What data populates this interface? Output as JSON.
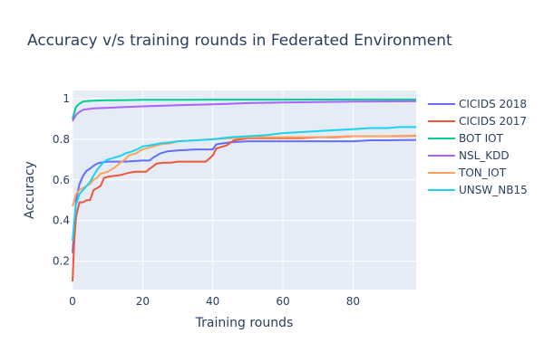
{
  "chart_data": {
    "type": "line",
    "title": "Accuracy v/s training rounds in Federated Environment",
    "xlabel": "Training rounds",
    "ylabel": "Accuracy",
    "xlim": [
      0,
      98
    ],
    "ylim": [
      0.06,
      1.04
    ],
    "x_ticks": [
      0,
      20,
      40,
      60,
      80
    ],
    "x_tick_labels": [
      "0",
      "20",
      "40",
      "60",
      "80"
    ],
    "y_ticks": [
      0.2,
      0.4,
      0.6,
      0.8,
      1.0
    ],
    "y_tick_labels": [
      "0.2",
      "0.4",
      "0.6",
      "0.8",
      "1"
    ],
    "grid": true,
    "legend_position": "right",
    "plot_background": "#e5ecf6",
    "series": [
      {
        "name": "CICIDS 2018",
        "color": "#636efa",
        "points": [
          [
            0,
            0.24
          ],
          [
            1,
            0.5
          ],
          [
            2,
            0.58
          ],
          [
            3,
            0.62
          ],
          [
            4,
            0.645
          ],
          [
            5,
            0.655
          ],
          [
            6,
            0.67
          ],
          [
            7,
            0.68
          ],
          [
            8,
            0.685
          ],
          [
            10,
            0.69
          ],
          [
            15,
            0.69
          ],
          [
            20,
            0.695
          ],
          [
            22,
            0.695
          ],
          [
            23,
            0.71
          ],
          [
            25,
            0.73
          ],
          [
            27,
            0.74
          ],
          [
            30,
            0.745
          ],
          [
            35,
            0.75
          ],
          [
            40,
            0.75
          ],
          [
            41,
            0.775
          ],
          [
            45,
            0.785
          ],
          [
            50,
            0.79
          ],
          [
            55,
            0.79
          ],
          [
            60,
            0.79
          ],
          [
            70,
            0.79
          ],
          [
            80,
            0.79
          ],
          [
            85,
            0.795
          ],
          [
            90,
            0.795
          ],
          [
            98,
            0.797
          ]
        ]
      },
      {
        "name": "CICIDS 2017",
        "color": "#ef553b",
        "points": [
          [
            0,
            0.1
          ],
          [
            0.5,
            0.3
          ],
          [
            1,
            0.42
          ],
          [
            2,
            0.49
          ],
          [
            3,
            0.49
          ],
          [
            4,
            0.5
          ],
          [
            5,
            0.5
          ],
          [
            6,
            0.55
          ],
          [
            7,
            0.56
          ],
          [
            8,
            0.57
          ],
          [
            9,
            0.61
          ],
          [
            10,
            0.615
          ],
          [
            12,
            0.62
          ],
          [
            14,
            0.625
          ],
          [
            16,
            0.635
          ],
          [
            18,
            0.64
          ],
          [
            20,
            0.64
          ],
          [
            21,
            0.64
          ],
          [
            22,
            0.655
          ],
          [
            24,
            0.68
          ],
          [
            26,
            0.685
          ],
          [
            28,
            0.685
          ],
          [
            30,
            0.69
          ],
          [
            35,
            0.69
          ],
          [
            38,
            0.69
          ],
          [
            40,
            0.72
          ],
          [
            41,
            0.755
          ],
          [
            42,
            0.76
          ],
          [
            44,
            0.77
          ],
          [
            46,
            0.795
          ],
          [
            48,
            0.8
          ],
          [
            50,
            0.805
          ],
          [
            55,
            0.805
          ],
          [
            60,
            0.805
          ],
          [
            65,
            0.805
          ],
          [
            70,
            0.81
          ],
          [
            75,
            0.81
          ],
          [
            80,
            0.815
          ],
          [
            85,
            0.815
          ],
          [
            90,
            0.815
          ],
          [
            98,
            0.817
          ]
        ]
      },
      {
        "name": "BOT IOT",
        "color": "#00cc96",
        "points": [
          [
            0,
            0.9
          ],
          [
            1,
            0.96
          ],
          [
            2,
            0.975
          ],
          [
            3,
            0.985
          ],
          [
            4,
            0.988
          ],
          [
            6,
            0.99
          ],
          [
            10,
            0.992
          ],
          [
            15,
            0.993
          ],
          [
            20,
            0.994
          ],
          [
            30,
            0.994
          ],
          [
            40,
            0.995
          ],
          [
            60,
            0.995
          ],
          [
            80,
            0.996
          ],
          [
            98,
            0.996
          ]
        ]
      },
      {
        "name": "NSL_KDD",
        "color": "#ab63fa",
        "points": [
          [
            0,
            0.89
          ],
          [
            1,
            0.92
          ],
          [
            2,
            0.935
          ],
          [
            3,
            0.945
          ],
          [
            4,
            0.948
          ],
          [
            6,
            0.952
          ],
          [
            10,
            0.955
          ],
          [
            20,
            0.962
          ],
          [
            30,
            0.968
          ],
          [
            40,
            0.972
          ],
          [
            50,
            0.978
          ],
          [
            60,
            0.981
          ],
          [
            70,
            0.983
          ],
          [
            80,
            0.985
          ],
          [
            98,
            0.987
          ]
        ]
      },
      {
        "name": "TON_IOT",
        "color": "#ffa15a",
        "points": [
          [
            0,
            0.47
          ],
          [
            1,
            0.53
          ],
          [
            2,
            0.55
          ],
          [
            3,
            0.56
          ],
          [
            4,
            0.57
          ],
          [
            5,
            0.58
          ],
          [
            6,
            0.6
          ],
          [
            7,
            0.61
          ],
          [
            8,
            0.63
          ],
          [
            10,
            0.64
          ],
          [
            12,
            0.66
          ],
          [
            14,
            0.69
          ],
          [
            15,
            0.7
          ],
          [
            16,
            0.72
          ],
          [
            18,
            0.73
          ],
          [
            20,
            0.75
          ],
          [
            22,
            0.76
          ],
          [
            25,
            0.775
          ],
          [
            28,
            0.78
          ],
          [
            30,
            0.79
          ],
          [
            35,
            0.795
          ],
          [
            40,
            0.8
          ],
          [
            45,
            0.805
          ],
          [
            50,
            0.81
          ],
          [
            55,
            0.81
          ],
          [
            60,
            0.81
          ],
          [
            70,
            0.81
          ],
          [
            80,
            0.815
          ],
          [
            90,
            0.815
          ],
          [
            98,
            0.818
          ]
        ]
      },
      {
        "name": "UNSW_NB15",
        "color": "#19d3f3",
        "points": [
          [
            0,
            0.3
          ],
          [
            0.5,
            0.4
          ],
          [
            1,
            0.48
          ],
          [
            2,
            0.53
          ],
          [
            3,
            0.55
          ],
          [
            4,
            0.57
          ],
          [
            5,
            0.59
          ],
          [
            6,
            0.62
          ],
          [
            7,
            0.65
          ],
          [
            8,
            0.67
          ],
          [
            9,
            0.69
          ],
          [
            10,
            0.7
          ],
          [
            12,
            0.71
          ],
          [
            14,
            0.72
          ],
          [
            15,
            0.73
          ],
          [
            17,
            0.74
          ],
          [
            19,
            0.755
          ],
          [
            20,
            0.765
          ],
          [
            22,
            0.77
          ],
          [
            25,
            0.78
          ],
          [
            28,
            0.785
          ],
          [
            30,
            0.79
          ],
          [
            35,
            0.795
          ],
          [
            40,
            0.8
          ],
          [
            45,
            0.81
          ],
          [
            50,
            0.815
          ],
          [
            55,
            0.82
          ],
          [
            60,
            0.83
          ],
          [
            65,
            0.835
          ],
          [
            70,
            0.84
          ],
          [
            75,
            0.845
          ],
          [
            80,
            0.85
          ],
          [
            85,
            0.855
          ],
          [
            90,
            0.855
          ],
          [
            93,
            0.86
          ],
          [
            98,
            0.86
          ]
        ]
      }
    ]
  }
}
